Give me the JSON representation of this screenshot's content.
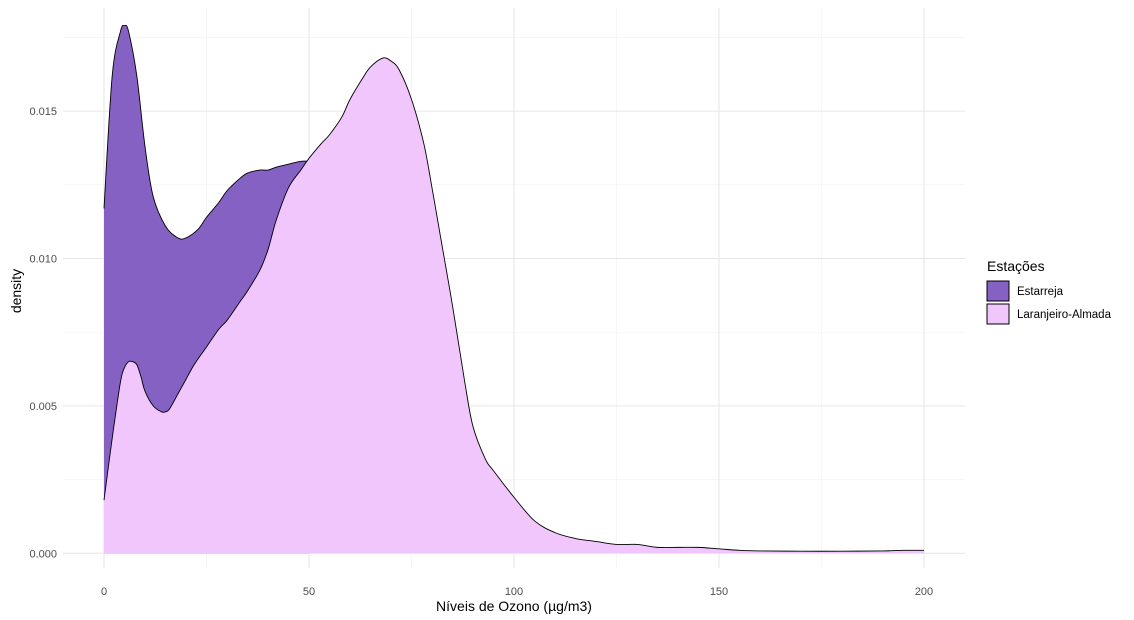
{
  "chart_data": {
    "type": "area",
    "title": "",
    "xlabel": "Níveis de Ozono (µg/m3)",
    "ylabel": "density",
    "xlim": [
      -10,
      210
    ],
    "ylim": [
      -0.0005,
      0.0185
    ],
    "x_ticks": [
      0,
      50,
      100,
      150,
      200
    ],
    "y_ticks": [
      0.0,
      0.005,
      0.01,
      0.015
    ],
    "x_tick_labels": [
      "0",
      "50",
      "100",
      "150",
      "200"
    ],
    "y_tick_labels": [
      "0.000",
      "0.005",
      "0.010",
      "0.015"
    ],
    "grid": true,
    "legend": {
      "title": "Estações",
      "placement": "right"
    },
    "series": [
      {
        "name": "Estarreja",
        "color": "#8461C2",
        "x": [
          0,
          2,
          4,
          5,
          6,
          8,
          10,
          12,
          15,
          18,
          20,
          23,
          25,
          28,
          30,
          33,
          35,
          38,
          40,
          42,
          45,
          48,
          50
        ],
        "y": [
          0.0117,
          0.0162,
          0.0177,
          0.0179,
          0.0177,
          0.0162,
          0.0138,
          0.0121,
          0.0111,
          0.0107,
          0.0107,
          0.011,
          0.0114,
          0.0119,
          0.0123,
          0.0127,
          0.0129,
          0.013,
          0.013,
          0.0131,
          0.0132,
          0.0133,
          0.0133
        ]
      },
      {
        "name": "Laranjeiro-Almada",
        "color": "#F1C6FC",
        "x": [
          0,
          2,
          4,
          5,
          6,
          7,
          8,
          9,
          10,
          12,
          14,
          15,
          16,
          18,
          20,
          22,
          25,
          28,
          30,
          33,
          35,
          38,
          40,
          42,
          45,
          48,
          50,
          53,
          55,
          58,
          60,
          63,
          65,
          68,
          70,
          72,
          75,
          78,
          80,
          82,
          85,
          88,
          90,
          93,
          95,
          100,
          105,
          110,
          115,
          120,
          125,
          130,
          135,
          140,
          145,
          150,
          155,
          160,
          170,
          180,
          190,
          195,
          200
        ],
        "y": [
          0.0018,
          0.0039,
          0.0058,
          0.0063,
          0.0065,
          0.0065,
          0.0064,
          0.006,
          0.0055,
          0.005,
          0.0048,
          0.0048,
          0.0049,
          0.0054,
          0.0059,
          0.0064,
          0.007,
          0.0076,
          0.0079,
          0.0085,
          0.0089,
          0.0096,
          0.0103,
          0.0113,
          0.0124,
          0.013,
          0.0134,
          0.0139,
          0.0142,
          0.0148,
          0.0154,
          0.0161,
          0.0165,
          0.0168,
          0.0167,
          0.0164,
          0.0154,
          0.0139,
          0.0124,
          0.0108,
          0.0084,
          0.0058,
          0.0043,
          0.0032,
          0.0028,
          0.0019,
          0.0011,
          0.0007,
          0.0005,
          0.0004,
          0.0003,
          0.0003,
          0.0002,
          0.0002,
          0.0002,
          0.00015,
          0.0001,
          8e-05,
          7e-05,
          7e-05,
          8e-05,
          0.0001,
          0.0001
        ]
      }
    ]
  }
}
